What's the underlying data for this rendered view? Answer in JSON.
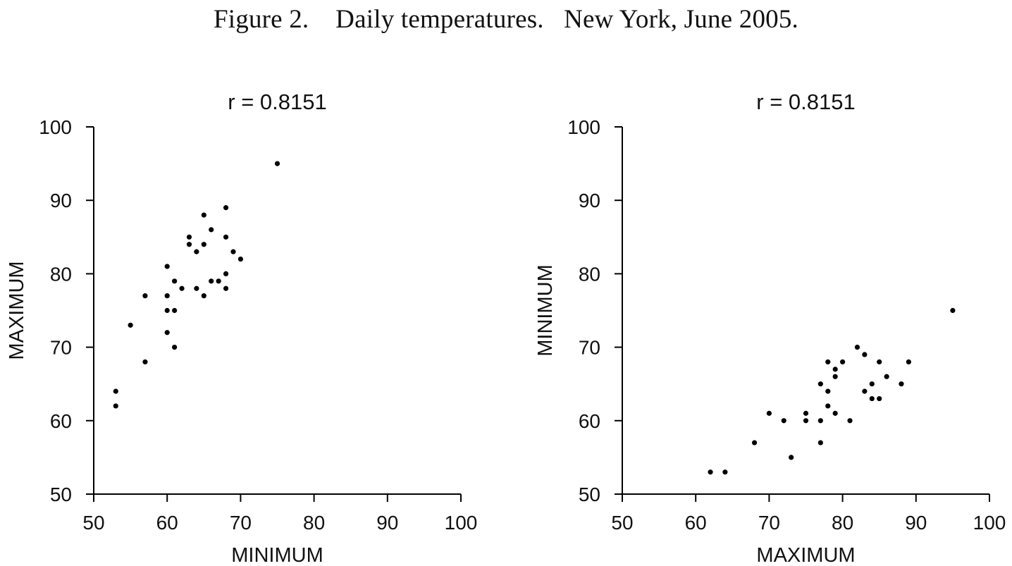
{
  "figure": {
    "title": "Figure 2.    Daily temperatures.   New York, June 2005."
  },
  "chart_data": [
    {
      "type": "scatter",
      "title": "r = 0.8151",
      "xlabel": "MINIMUM",
      "ylabel": "MAXIMUM",
      "xlim": [
        50,
        100
      ],
      "ylim": [
        50,
        100
      ],
      "xticks": [
        50,
        60,
        70,
        80,
        90,
        100
      ],
      "yticks": [
        50,
        60,
        70,
        80,
        90,
        100
      ],
      "grid": false,
      "point_color": "#000000",
      "points": [
        {
          "x": 53,
          "y": 64
        },
        {
          "x": 53,
          "y": 62
        },
        {
          "x": 55,
          "y": 73
        },
        {
          "x": 57,
          "y": 77
        },
        {
          "x": 57,
          "y": 68
        },
        {
          "x": 60,
          "y": 81
        },
        {
          "x": 60,
          "y": 77
        },
        {
          "x": 60,
          "y": 75
        },
        {
          "x": 60,
          "y": 72
        },
        {
          "x": 61,
          "y": 79
        },
        {
          "x": 61,
          "y": 75
        },
        {
          "x": 61,
          "y": 70
        },
        {
          "x": 62,
          "y": 78
        },
        {
          "x": 63,
          "y": 85
        },
        {
          "x": 63,
          "y": 84
        },
        {
          "x": 64,
          "y": 83
        },
        {
          "x": 64,
          "y": 78
        },
        {
          "x": 65,
          "y": 88
        },
        {
          "x": 65,
          "y": 84
        },
        {
          "x": 65,
          "y": 77
        },
        {
          "x": 66,
          "y": 86
        },
        {
          "x": 66,
          "y": 79
        },
        {
          "x": 67,
          "y": 79
        },
        {
          "x": 68,
          "y": 89
        },
        {
          "x": 68,
          "y": 85
        },
        {
          "x": 68,
          "y": 80
        },
        {
          "x": 68,
          "y": 78
        },
        {
          "x": 69,
          "y": 83
        },
        {
          "x": 70,
          "y": 82
        },
        {
          "x": 75,
          "y": 95
        }
      ]
    },
    {
      "type": "scatter",
      "title": "r = 0.8151",
      "xlabel": "MAXIMUM",
      "ylabel": "MINIMUM",
      "xlim": [
        50,
        100
      ],
      "ylim": [
        50,
        100
      ],
      "xticks": [
        50,
        60,
        70,
        80,
        90,
        100
      ],
      "yticks": [
        50,
        60,
        70,
        80,
        90,
        100
      ],
      "grid": false,
      "point_color": "#000000",
      "points": [
        {
          "x": 62,
          "y": 53
        },
        {
          "x": 64,
          "y": 53
        },
        {
          "x": 68,
          "y": 57
        },
        {
          "x": 70,
          "y": 61
        },
        {
          "x": 72,
          "y": 60
        },
        {
          "x": 73,
          "y": 55
        },
        {
          "x": 75,
          "y": 61
        },
        {
          "x": 75,
          "y": 60
        },
        {
          "x": 77,
          "y": 65
        },
        {
          "x": 77,
          "y": 60
        },
        {
          "x": 77,
          "y": 57
        },
        {
          "x": 78,
          "y": 68
        },
        {
          "x": 78,
          "y": 64
        },
        {
          "x": 78,
          "y": 62
        },
        {
          "x": 79,
          "y": 67
        },
        {
          "x": 79,
          "y": 66
        },
        {
          "x": 79,
          "y": 61
        },
        {
          "x": 80,
          "y": 68
        },
        {
          "x": 81,
          "y": 60
        },
        {
          "x": 82,
          "y": 70
        },
        {
          "x": 83,
          "y": 69
        },
        {
          "x": 83,
          "y": 64
        },
        {
          "x": 84,
          "y": 65
        },
        {
          "x": 84,
          "y": 63
        },
        {
          "x": 85,
          "y": 68
        },
        {
          "x": 85,
          "y": 63
        },
        {
          "x": 86,
          "y": 66
        },
        {
          "x": 88,
          "y": 65
        },
        {
          "x": 89,
          "y": 68
        },
        {
          "x": 95,
          "y": 75
        }
      ]
    }
  ]
}
